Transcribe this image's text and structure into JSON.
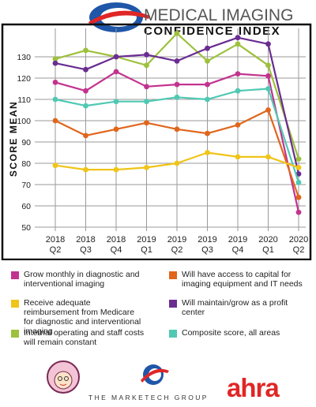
{
  "header": {
    "title_top": "MEDICAL IMAGING",
    "title_bottom": "CONFIDENCE INDEX",
    "logo": "blue-globe-swoosh-logo"
  },
  "chart_data": {
    "type": "line",
    "title": "",
    "xlabel": "",
    "ylabel": "SCORE MEAN",
    "ylim": [
      45,
      142
    ],
    "yticks": [
      50,
      60,
      70,
      80,
      90,
      100,
      110,
      120,
      130
    ],
    "grid": true,
    "legend_position": "bottom",
    "categories": [
      {
        "year": "2018",
        "quarter": "Q2"
      },
      {
        "year": "2018",
        "quarter": "Q3"
      },
      {
        "year": "2018",
        "quarter": "Q4"
      },
      {
        "year": "2019",
        "quarter": "Q1"
      },
      {
        "year": "2019",
        "quarter": "Q2"
      },
      {
        "year": "2019",
        "quarter": "Q3"
      },
      {
        "year": "2019",
        "quarter": "Q4"
      },
      {
        "year": "2020",
        "quarter": "Q1"
      },
      {
        "year": "2020",
        "quarter": "Q2"
      }
    ],
    "series": [
      {
        "name": "Internal operating and staff costs will remain constant",
        "color": "#9dc13b",
        "values": [
          129,
          133,
          130,
          126,
          141,
          128,
          136,
          126,
          82
        ]
      },
      {
        "name": "Will maintain/grow as a profit center",
        "color": "#6a2c91",
        "values": [
          127,
          124,
          130,
          131,
          128,
          134,
          139,
          136,
          75
        ]
      },
      {
        "name": "Grow monthly in diagnostic and interventional imaging",
        "color": "#c2338f",
        "values": [
          118,
          114,
          123,
          116,
          117,
          117,
          122,
          121,
          57
        ]
      },
      {
        "name": "Composite score, all areas",
        "color": "#4fc9b3",
        "values": [
          110,
          107,
          109,
          109,
          111,
          110,
          114,
          115,
          71
        ]
      },
      {
        "name": "Will have access to capital for imaging equipment and IT needs",
        "color": "#e0661c",
        "values": [
          100,
          93,
          96,
          99,
          96,
          94,
          98,
          105,
          64
        ]
      },
      {
        "name": "Receive adequate reimbursement from Medicare for diagnostic and interventional imaging",
        "color": "#f0c419",
        "values": [
          79,
          77,
          77,
          78,
          80,
          85,
          83,
          83,
          78
        ]
      }
    ]
  },
  "legend": [
    {
      "label": "Grow monthly in diagnostic and interventional imaging",
      "color": "#c2338f"
    },
    {
      "label": "Will have access to capital for imaging equipment and IT needs",
      "color": "#e0661c"
    },
    {
      "label": "Receive adequate reimbursement from Medicare for diagnostic and interventional imaging",
      "color": "#f0c419"
    },
    {
      "label": "Will maintain/grow as a profit center",
      "color": "#6a2c91"
    },
    {
      "label": "Internal operating and staff costs will remain constant",
      "color": "#9dc13b"
    },
    {
      "label": "Composite score, all areas",
      "color": "#4fc9b3"
    }
  ],
  "footer": {
    "marketech_label": "THE MARKETECH GROUP",
    "ahra_label": "ahra",
    "logos": [
      "grandma-mascot-logo",
      "marketech-globe-logo"
    ]
  }
}
